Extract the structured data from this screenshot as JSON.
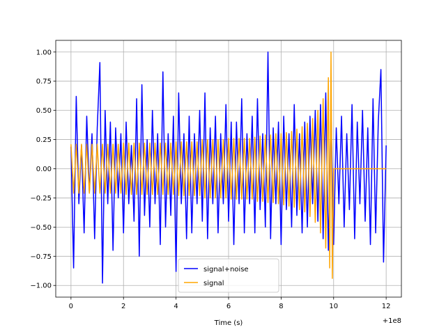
{
  "chart_data": {
    "type": "line",
    "xlabel": "Time (s)",
    "x_offset_label": "+1e8",
    "xlim": [
      -0.58,
      12.58
    ],
    "ylim": [
      -1.1,
      1.1
    ],
    "xticks": [
      0,
      2,
      4,
      6,
      8,
      10,
      12
    ],
    "yticks": [
      {
        "value": -1,
        "label": "−1.00"
      },
      {
        "value": -0.75,
        "label": "−0.75"
      },
      {
        "value": -0.5,
        "label": "−0.50"
      },
      {
        "value": -0.25,
        "label": "−0.25"
      },
      {
        "value": 0,
        "label": "0.00"
      },
      {
        "value": 0.25,
        "label": "0.25"
      },
      {
        "value": 0.5,
        "label": "0.50"
      },
      {
        "value": 0.75,
        "label": "0.75"
      },
      {
        "value": 1,
        "label": "1.00"
      }
    ],
    "grid": true,
    "legend": "lower center",
    "series": [
      {
        "name": "signal+noise",
        "color": "#0000ff",
        "x": [
          0,
          0.1,
          0.2,
          0.3,
          0.4,
          0.5,
          0.6,
          0.7,
          0.8,
          0.9,
          1,
          1.1,
          1.2,
          1.3,
          1.4,
          1.5,
          1.6,
          1.7,
          1.8,
          1.9,
          2,
          2.1,
          2.2,
          2.3,
          2.4,
          2.5,
          2.6,
          2.7,
          2.8,
          2.9,
          3,
          3.1,
          3.2,
          3.3,
          3.4,
          3.5,
          3.6,
          3.7,
          3.8,
          3.9,
          4,
          4.1,
          4.2,
          4.3,
          4.4,
          4.5,
          4.6,
          4.7,
          4.8,
          4.9,
          5,
          5.1,
          5.2,
          5.3,
          5.4,
          5.5,
          5.6,
          5.7,
          5.8,
          5.9,
          6,
          6.1,
          6.2,
          6.3,
          6.4,
          6.5,
          6.6,
          6.7,
          6.8,
          6.9,
          7,
          7.1,
          7.2,
          7.3,
          7.4,
          7.5,
          7.6,
          7.7,
          7.8,
          7.9,
          8,
          8.1,
          8.2,
          8.3,
          8.4,
          8.5,
          8.6,
          8.7,
          8.8,
          8.9,
          9,
          9.1,
          9.2,
          9.3,
          9.4,
          9.5,
          9.6,
          9.7,
          9.8,
          9.9,
          10,
          10.1,
          10.2,
          10.3,
          10.4,
          10.5,
          10.6,
          10.7,
          10.8,
          10.9,
          11,
          11.1,
          11.2,
          11.3,
          11.4,
          11.5,
          11.6,
          11.7,
          11.8,
          11.9,
          12
        ],
        "values": [
          0.19,
          -0.85,
          0.62,
          -0.3,
          0.2,
          -0.55,
          0.45,
          -0.2,
          0.3,
          -0.6,
          0.35,
          0.91,
          -0.98,
          0.5,
          -0.3,
          0.4,
          -0.7,
          0.35,
          -0.25,
          0.3,
          -0.55,
          0.4,
          -0.3,
          0.2,
          -0.45,
          0.6,
          -0.75,
          0.72,
          -0.4,
          0.25,
          -0.5,
          0.5,
          -0.3,
          0.3,
          -0.65,
          0.83,
          -0.5,
          0.3,
          -0.4,
          0.45,
          -0.88,
          0.65,
          -0.3,
          0.3,
          -0.6,
          0.45,
          -0.55,
          0.3,
          -0.3,
          0.5,
          -0.45,
          0.65,
          -0.6,
          0.35,
          -0.3,
          0.45,
          -0.55,
          0.3,
          -0.3,
          0.55,
          -0.45,
          0.4,
          -0.65,
          0.4,
          -0.3,
          0.6,
          -0.55,
          0.3,
          -0.3,
          0.45,
          -0.55,
          0.6,
          -0.35,
          0.3,
          -0.5,
          1.0,
          -0.6,
          0.35,
          -0.3,
          0.4,
          -0.65,
          0.45,
          -0.35,
          0.3,
          -0.5,
          0.55,
          -0.4,
          0.3,
          -0.55,
          0.4,
          -0.5,
          0.45,
          -0.3,
          0.5,
          -0.45,
          0.55,
          -0.6,
          0.65,
          -0.7,
          0.5,
          -0.65,
          0.35,
          -0.3,
          0.45,
          -0.5,
          0.3,
          -0.35,
          0.55,
          -0.6,
          0.4,
          -0.3,
          0.5,
          -0.45,
          0.35,
          -0.65,
          0.6,
          -0.55,
          0.4,
          0.85,
          -0.8,
          0.2
        ]
      },
      {
        "name": "signal",
        "color": "#ffa500",
        "x": [
          0,
          0.1,
          0.2,
          0.3,
          0.4,
          0.5,
          0.6,
          0.7,
          0.8,
          0.9,
          1,
          1.1,
          1.2,
          1.3,
          1.4,
          1.5,
          1.6,
          1.7,
          1.8,
          1.9,
          2,
          2.1,
          2.2,
          2.3,
          2.4,
          2.5,
          2.6,
          2.7,
          2.8,
          2.9,
          3,
          3.1,
          3.2,
          3.3,
          3.4,
          3.5,
          3.6,
          3.7,
          3.8,
          3.9,
          4,
          4.1,
          4.2,
          4.3,
          4.4,
          4.5,
          4.6,
          4.7,
          4.8,
          4.9,
          5,
          5.1,
          5.2,
          5.3,
          5.4,
          5.5,
          5.6,
          5.7,
          5.8,
          5.9,
          6,
          6.1,
          6.2,
          6.3,
          6.4,
          6.5,
          6.6,
          6.7,
          6.8,
          6.9,
          7,
          7.1,
          7.2,
          7.3,
          7.4,
          7.5,
          7.6,
          7.7,
          7.8,
          7.9,
          8,
          8.1,
          8.2,
          8.3,
          8.4,
          8.5,
          8.6,
          8.7,
          8.8,
          8.9,
          9,
          9.1,
          9.2,
          9.3,
          9.4,
          9.5,
          9.6,
          9.7,
          9.8,
          9.85,
          9.9,
          9.95,
          10,
          12
        ],
        "values": [
          0.21,
          -0.21,
          0.21,
          -0.21,
          0.21,
          -0.21,
          0.21,
          -0.21,
          0.21,
          -0.21,
          0.21,
          -0.21,
          0.21,
          -0.21,
          0.21,
          -0.21,
          0.21,
          -0.21,
          0.21,
          -0.21,
          0.22,
          -0.22,
          0.22,
          -0.22,
          0.22,
          -0.22,
          0.22,
          -0.22,
          0.22,
          -0.22,
          0.22,
          -0.22,
          0.22,
          -0.22,
          0.22,
          -0.22,
          0.22,
          -0.22,
          0.22,
          -0.22,
          0.23,
          -0.23,
          0.23,
          -0.23,
          0.23,
          -0.23,
          0.23,
          -0.23,
          0.23,
          -0.23,
          0.25,
          -0.25,
          0.25,
          -0.25,
          0.25,
          -0.25,
          0.25,
          -0.25,
          0.25,
          -0.25,
          0.26,
          -0.26,
          0.26,
          -0.26,
          0.26,
          -0.26,
          0.26,
          -0.26,
          0.26,
          -0.26,
          0.27,
          -0.28,
          0.28,
          -0.28,
          0.29,
          -0.29,
          0.29,
          -0.29,
          0.3,
          -0.3,
          0.3,
          -0.31,
          0.31,
          -0.32,
          0.32,
          -0.33,
          0.34,
          -0.35,
          0.36,
          -0.37,
          0.39,
          -0.41,
          0.43,
          -0.46,
          0.5,
          -0.55,
          0.6,
          -0.68,
          0.78,
          -0.85,
          1.0,
          -0.94,
          0,
          0
        ]
      }
    ]
  }
}
